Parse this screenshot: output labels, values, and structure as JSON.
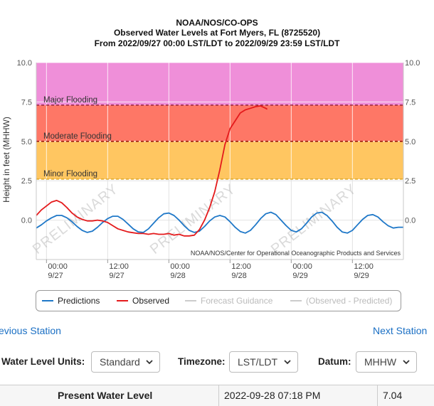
{
  "chart_data": {
    "type": "line",
    "title": [
      "NOAA/NOS/CO-OPS",
      "Observed Water Levels at Fort Myers, FL (8725520)",
      "From 2022/09/27 00:00 LST/LDT to 2022/09/29 23:59 LST/LDT"
    ],
    "ylabel": "Height in feet (MHHW)",
    "ylim": [
      -2.5,
      10.0
    ],
    "yticks": [
      "10.0",
      "7.5",
      "5.0",
      "2.5",
      "0.0"
    ],
    "xlim": [
      -2,
      70
    ],
    "xticks": [
      {
        "x": 0,
        "time": "00:00",
        "date": "9/27"
      },
      {
        "x": 12,
        "time": "12:00",
        "date": "9/27"
      },
      {
        "x": 24,
        "time": "00:00",
        "date": "9/28"
      },
      {
        "x": 36,
        "time": "12:00",
        "date": "9/28"
      },
      {
        "x": 48,
        "time": "00:00",
        "date": "9/29"
      },
      {
        "x": 60,
        "time": "12:00",
        "date": "9/29"
      }
    ],
    "grid": true,
    "bands": [
      {
        "name": "Major Flooding",
        "from": 7.3,
        "to": 10.0,
        "color": "#ef8fd9",
        "line": "#8b1a3a"
      },
      {
        "name": "Moderate Flooding",
        "from": 5.0,
        "to": 7.3,
        "color": "#fe7766",
        "line": "#8b0000"
      },
      {
        "name": "Minor Flooding",
        "from": 2.6,
        "to": 5.0,
        "color": "#ffc661",
        "line": "#d9a21c"
      }
    ],
    "series": [
      {
        "name": "Predictions",
        "color": "#1f78c8",
        "x": [
          -2,
          -1,
          0,
          1,
          2,
          3,
          4,
          5,
          6,
          7,
          8,
          9,
          10,
          11,
          12,
          13,
          14,
          15,
          16,
          17,
          18,
          19,
          20,
          21,
          22,
          23,
          24,
          25,
          26,
          27,
          28,
          29,
          30,
          31,
          32,
          33,
          34,
          35,
          36,
          37,
          38,
          39,
          40,
          41,
          42,
          43,
          44,
          45,
          46,
          47,
          48,
          49,
          50,
          51,
          52,
          53,
          54,
          55,
          56,
          57,
          58,
          59,
          60,
          61,
          62,
          63,
          64,
          65,
          66,
          67,
          68,
          69,
          70
        ],
        "y": [
          -0.5,
          -0.3,
          -0.05,
          0.15,
          0.3,
          0.3,
          0.15,
          -0.1,
          -0.4,
          -0.65,
          -0.78,
          -0.7,
          -0.45,
          -0.15,
          0.1,
          0.25,
          0.25,
          0.05,
          -0.25,
          -0.55,
          -0.75,
          -0.78,
          -0.55,
          -0.2,
          0.15,
          0.4,
          0.45,
          0.3,
          0.0,
          -0.35,
          -0.65,
          -0.78,
          -0.7,
          -0.4,
          -0.05,
          0.2,
          0.3,
          0.2,
          -0.1,
          -0.45,
          -0.72,
          -0.82,
          -0.65,
          -0.3,
          0.1,
          0.4,
          0.5,
          0.35,
          0.0,
          -0.35,
          -0.65,
          -0.75,
          -0.55,
          -0.2,
          0.2,
          0.45,
          0.5,
          0.3,
          -0.05,
          -0.45,
          -0.75,
          -0.82,
          -0.65,
          -0.3,
          0.05,
          0.3,
          0.35,
          0.2,
          -0.1,
          -0.35,
          -0.5,
          -0.45,
          -0.45
        ]
      },
      {
        "name": "Observed",
        "color": "#e41a1c",
        "x": [
          -2,
          -1,
          0,
          1,
          2,
          3,
          4,
          5,
          6,
          7,
          8,
          9,
          10,
          11,
          12,
          13,
          14,
          15,
          16,
          17,
          18,
          19,
          20,
          21,
          22,
          23,
          24,
          25,
          26,
          27,
          28,
          29,
          30,
          31,
          32,
          33,
          34,
          35,
          36,
          37,
          38,
          39,
          40,
          41,
          42,
          43,
          43.3
        ],
        "y": [
          0.3,
          0.65,
          0.9,
          1.15,
          1.25,
          1.1,
          0.8,
          0.45,
          0.2,
          0.05,
          -0.05,
          -0.05,
          0.0,
          -0.05,
          -0.15,
          -0.35,
          -0.55,
          -0.65,
          -0.75,
          -0.8,
          -0.85,
          -0.85,
          -0.9,
          -0.85,
          -0.9,
          -0.9,
          -0.85,
          -0.95,
          -0.9,
          -1.0,
          -1.0,
          -0.95,
          -0.6,
          0.0,
          0.8,
          1.8,
          3.2,
          4.8,
          5.8,
          6.3,
          6.8,
          7.0,
          7.1,
          7.2,
          7.25,
          7.1,
          7.04
        ]
      },
      {
        "name": "Forecast Guidance",
        "color": "#cccccc",
        "x": [],
        "y": []
      },
      {
        "name": "(Observed - Predicted)",
        "color": "#cccccc",
        "x": [],
        "y": []
      }
    ],
    "watermarks": [
      "PRELIMINARY",
      "PRELIMINARY",
      "PRELIMINARY"
    ],
    "credit": "NOAA/NOS/Center for Operational Oceanographic Products and Services"
  },
  "legend": [
    "Predictions",
    "Observed",
    "Forecast Guidance",
    "(Observed - Predicted)"
  ],
  "nav": {
    "prev": "evious Station",
    "next": "Next Station"
  },
  "controls": {
    "units_label": "Water Level Units:",
    "units_value": "Standard",
    "timezone_label": "Timezone:",
    "timezone_value": "LST/LDT",
    "datum_label": "Datum:",
    "datum_value": "MHHW"
  },
  "present": {
    "label": "Present Water Level",
    "time": "2022-09-28 07:18 PM",
    "value": "7.04"
  }
}
